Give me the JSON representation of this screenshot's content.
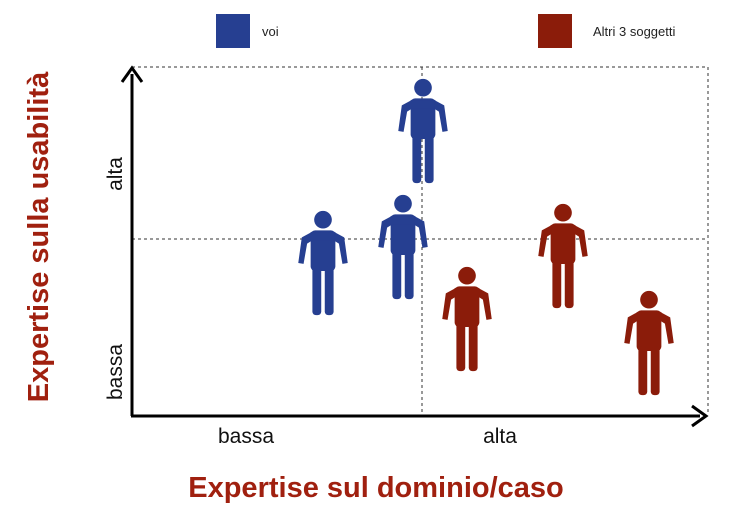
{
  "legend": {
    "items": [
      {
        "label": "voi",
        "color": "#263f91"
      },
      {
        "label": "Altri 3 soggetti",
        "color": "#8b1c0a"
      }
    ]
  },
  "axes": {
    "x_title": "Expertise sul dominio/caso",
    "y_title": "Expertise sulla usabilità",
    "title_color": "#a0200f",
    "x_ticks": [
      "bassa",
      "alta"
    ],
    "y_ticks": [
      "bassa",
      "alta"
    ]
  },
  "people": [
    {
      "group": "voi",
      "color": "#263f91"
    },
    {
      "group": "voi",
      "color": "#263f91"
    },
    {
      "group": "voi",
      "color": "#263f91"
    },
    {
      "group": "Altri 3 soggetti",
      "color": "#8b1c0a"
    },
    {
      "group": "Altri 3 soggetti",
      "color": "#8b1c0a"
    },
    {
      "group": "Altri 3 soggetti",
      "color": "#8b1c0a"
    }
  ]
}
